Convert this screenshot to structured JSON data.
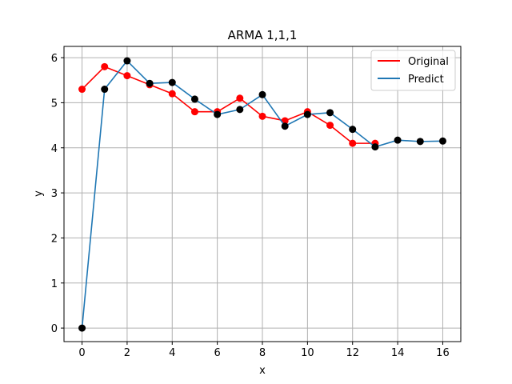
{
  "chart_data": {
    "type": "line",
    "title": "ARMA 1,1,1",
    "xlabel": "x",
    "ylabel": "y",
    "xlim": [
      -0.8,
      16.8
    ],
    "ylim": [
      -0.3,
      6.25
    ],
    "xticks": [
      0,
      2,
      4,
      6,
      8,
      10,
      12,
      14,
      16
    ],
    "yticks": [
      0,
      1,
      2,
      3,
      4,
      5,
      6
    ],
    "grid": true,
    "legend_position": "top-right",
    "series": [
      {
        "name": "Original",
        "color": "#ff0000",
        "marker_color": "#ff0000",
        "x": [
          0,
          1,
          2,
          3,
          4,
          5,
          6,
          7,
          8,
          9,
          10,
          11,
          12,
          13
        ],
        "y": [
          5.3,
          5.8,
          5.6,
          5.4,
          5.2,
          4.8,
          4.8,
          5.1,
          4.7,
          4.6,
          4.8,
          4.5,
          4.1,
          4.1
        ]
      },
      {
        "name": "Predict",
        "color": "#1f77b4",
        "marker_color": "#000000",
        "x": [
          0,
          1,
          2,
          3,
          4,
          5,
          6,
          7,
          8,
          9,
          10,
          11,
          12,
          13,
          14,
          15,
          16
        ],
        "y": [
          0.0,
          5.3,
          5.93,
          5.43,
          5.45,
          5.08,
          4.74,
          4.85,
          5.18,
          4.48,
          4.74,
          4.78,
          4.41,
          4.02,
          4.17,
          4.14,
          4.15
        ]
      }
    ]
  }
}
